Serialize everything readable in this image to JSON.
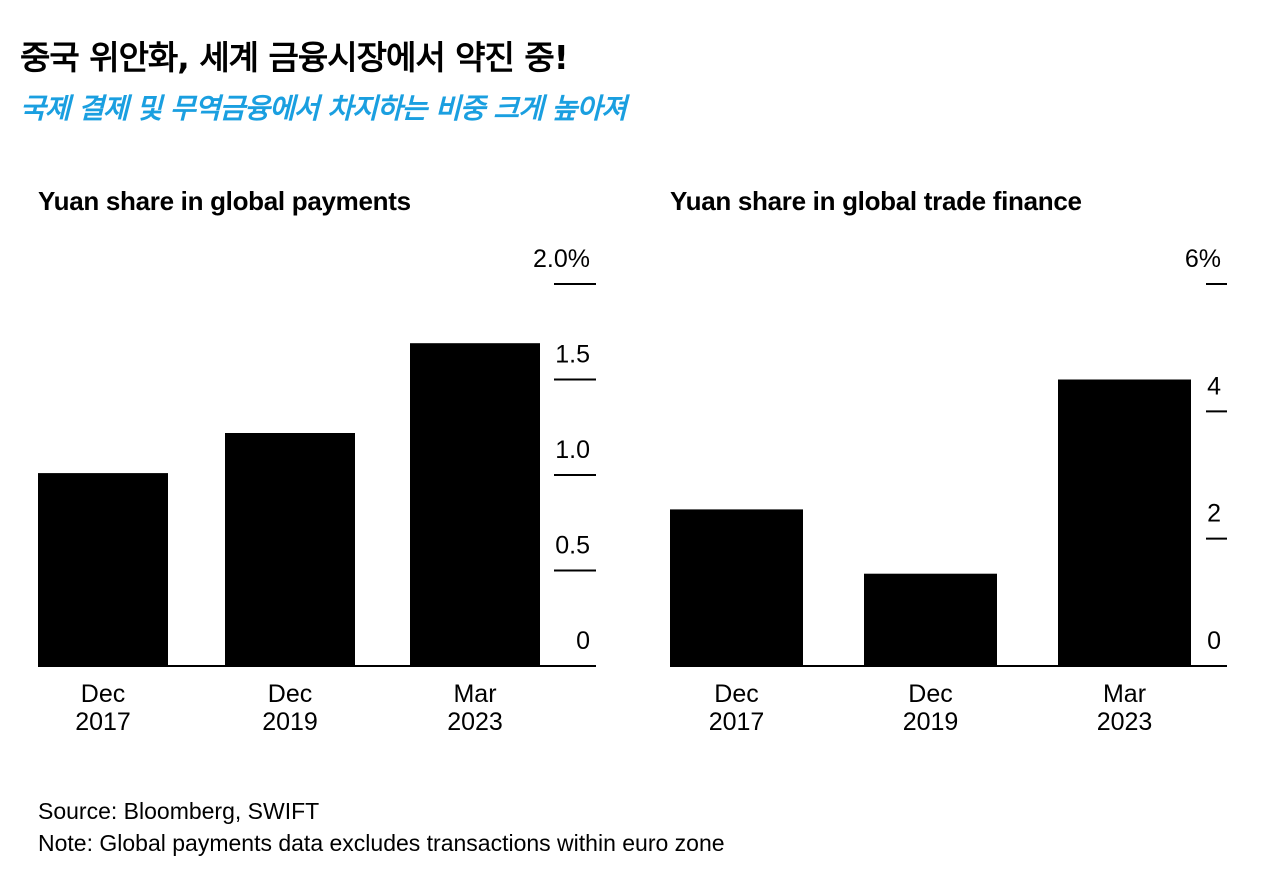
{
  "header": {
    "title": "중국 위안화, 세계 금융시장에서 약진 중!",
    "subtitle": "국제 결제 및 무역금융에서 차지하는 비중 크게 높아져",
    "subtitle_color": "#1a9fe0"
  },
  "footer": {
    "source": "Source: Bloomberg, SWIFT",
    "note": "Note: Global payments data excludes transactions within euro zone"
  },
  "colors": {
    "bar": "#000000",
    "text": "#000000",
    "background": "#ffffff"
  },
  "chart_data": [
    {
      "type": "bar",
      "title": "Yuan share in global payments",
      "categories": [
        [
          "Dec",
          "2017"
        ],
        [
          "Dec",
          "2019"
        ],
        [
          "Mar",
          "2023"
        ]
      ],
      "values": [
        1.01,
        1.22,
        1.69
      ],
      "ylim": [
        0,
        2.0
      ],
      "yticks": [
        0,
        0.5,
        1.0,
        1.5,
        2.0
      ],
      "ytick_labels": [
        "0",
        "0.5",
        "1.0",
        "1.5",
        "2.0%"
      ],
      "axis_position": "right",
      "grid": false
    },
    {
      "type": "bar",
      "title": "Yuan share in global trade finance",
      "categories": [
        [
          "Dec",
          "2017"
        ],
        [
          "Dec",
          "2019"
        ],
        [
          "Mar",
          "2023"
        ]
      ],
      "values": [
        2.46,
        1.45,
        4.5
      ],
      "ylim": [
        0,
        6
      ],
      "yticks": [
        0,
        2,
        4,
        6
      ],
      "ytick_labels": [
        "0",
        "2",
        "4",
        "6%"
      ],
      "axis_position": "right",
      "grid": false
    }
  ]
}
